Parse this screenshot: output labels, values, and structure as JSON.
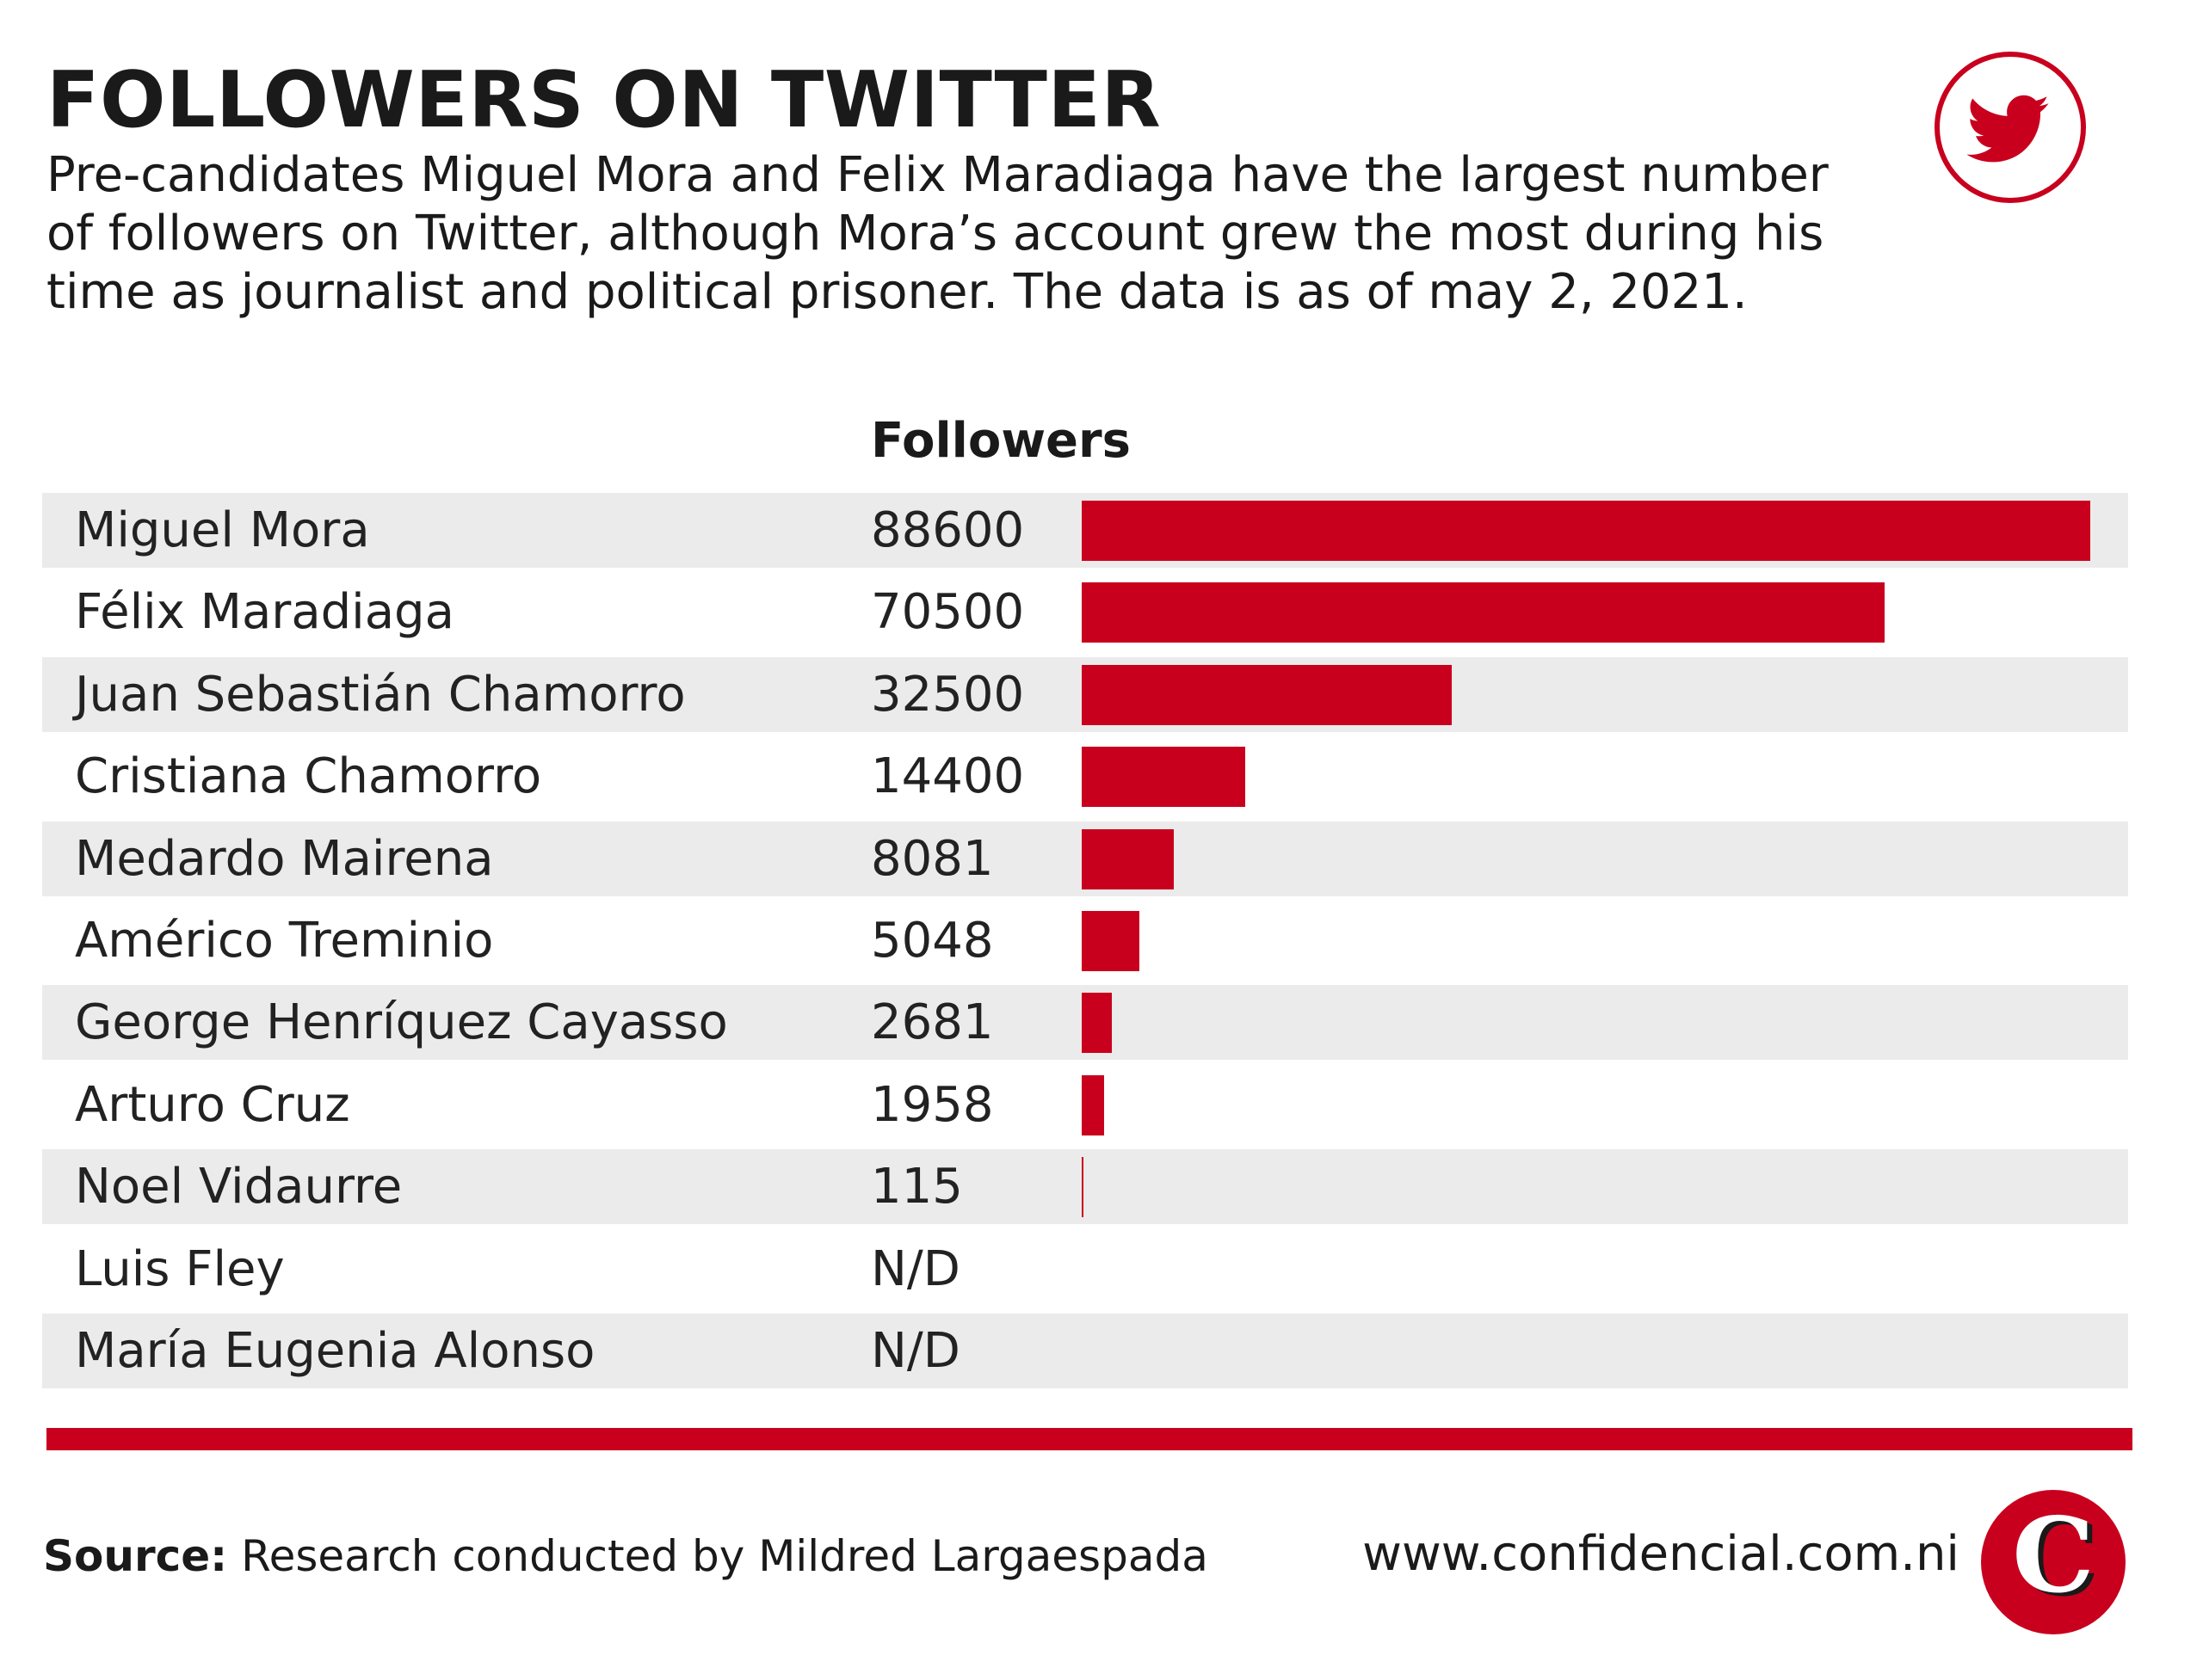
{
  "header": {
    "title": "FOLLOWERS ON TWITTER",
    "subtitle": "Pre-candidates Miguel Mora and Felix Maradiaga have the largest number of followers on Twitter, although Mora’s account grew the most during his time as journalist and political prisoner. The data is as of may 2, 2021."
  },
  "footer": {
    "source_label": "Source:",
    "source_text": "Research conducted by Mildred Largaespada",
    "website": "www.confidencial.com.ni"
  },
  "colors": {
    "accent": "#c8001e",
    "row_shade": "#ebebeb"
  },
  "icons": {
    "top_right": "twitter-bird-icon",
    "bottom_right": "confidencial-c-logo"
  },
  "chart_data": {
    "type": "bar",
    "orientation": "horizontal",
    "column_header": "Followers",
    "xlim": [
      0,
      88600
    ],
    "grid": false,
    "rows": [
      {
        "name": "Miguel Mora",
        "label": "88600",
        "value": 88600
      },
      {
        "name": "Félix Maradiaga",
        "label": "70500",
        "value": 70500
      },
      {
        "name": "Juan Sebastián Chamorro",
        "label": "32500",
        "value": 32500
      },
      {
        "name": "Cristiana Chamorro",
        "label": "14400",
        "value": 14400
      },
      {
        "name": "Medardo Mairena",
        "label": "8081",
        "value": 8081
      },
      {
        "name": "Américo Treminio",
        "label": "5048",
        "value": 5048
      },
      {
        "name": "George Henríquez Cayasso",
        "label": "2681",
        "value": 2681
      },
      {
        "name": "Arturo Cruz",
        "label": "1958",
        "value": 1958
      },
      {
        "name": "Noel Vidaurre",
        "label": "115",
        "value": 115
      },
      {
        "name": "Luis Fley",
        "label": "N/D",
        "value": null
      },
      {
        "name": "María Eugenia Alonso",
        "label": "N/D",
        "value": null
      }
    ]
  }
}
